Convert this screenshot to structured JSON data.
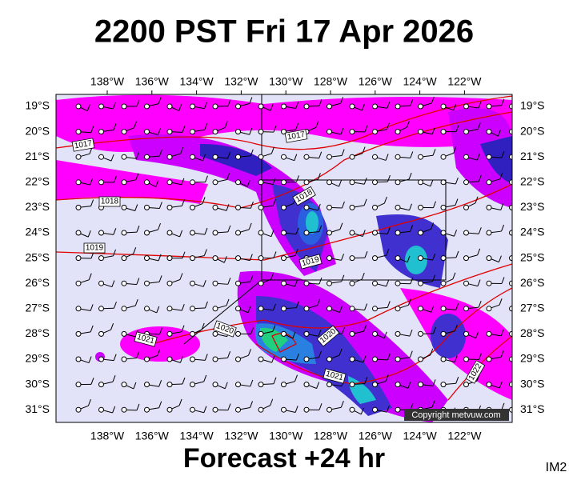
{
  "header": {
    "title": "2200 PST Fri 17 Apr 2026"
  },
  "map": {
    "lon_labels": [
      "138°W",
      "136°W",
      "134°W",
      "132°W",
      "130°W",
      "128°W",
      "126°W",
      "124°W",
      "122°W"
    ],
    "lat_labels": [
      "19°S",
      "20°S",
      "21°S",
      "22°S",
      "23°S",
      "24°S",
      "25°S",
      "26°S",
      "27°S",
      "28°S",
      "29°S",
      "30°S",
      "31°S"
    ],
    "isobar_labels": [
      "1017",
      "1017",
      "1018",
      "1018",
      "1019",
      "1019",
      "1020",
      "1021",
      "1020",
      "1021",
      "1022"
    ],
    "copyright": "Copyright metvuw.com"
  },
  "footer": {
    "forecast": "Forecast +24 hr",
    "image_id": "IM2"
  }
}
